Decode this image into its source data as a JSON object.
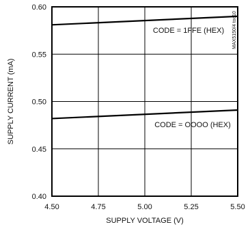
{
  "chart_data": {
    "type": "line",
    "title": "",
    "xlabel": "SUPPLY VOLTAGE (V)",
    "ylabel": "SUPPLY CURRENT (mA)",
    "xlim": [
      4.5,
      5.5
    ],
    "ylim": [
      0.4,
      0.6
    ],
    "x_ticks": [
      "4.50",
      "4.75",
      "5.00",
      "5.25",
      "5.50"
    ],
    "y_ticks": [
      "0.40",
      "0.45",
      "0.50",
      "0.55",
      "0.60"
    ],
    "grid": true,
    "series": [
      {
        "name": "CODE = 1FFE (HEX)",
        "x": [
          4.5,
          5.5
        ],
        "y": [
          0.581,
          0.59
        ]
      },
      {
        "name": "CODE = OOOO (HEX)",
        "x": [
          4.5,
          5.5
        ],
        "y": [
          0.482,
          0.491
        ]
      }
    ],
    "annotations": [
      "CODE = 1FFE (HEX)",
      "CODE = OOOO (HEX)"
    ],
    "watermark": "MAX5150/4 toc10"
  }
}
